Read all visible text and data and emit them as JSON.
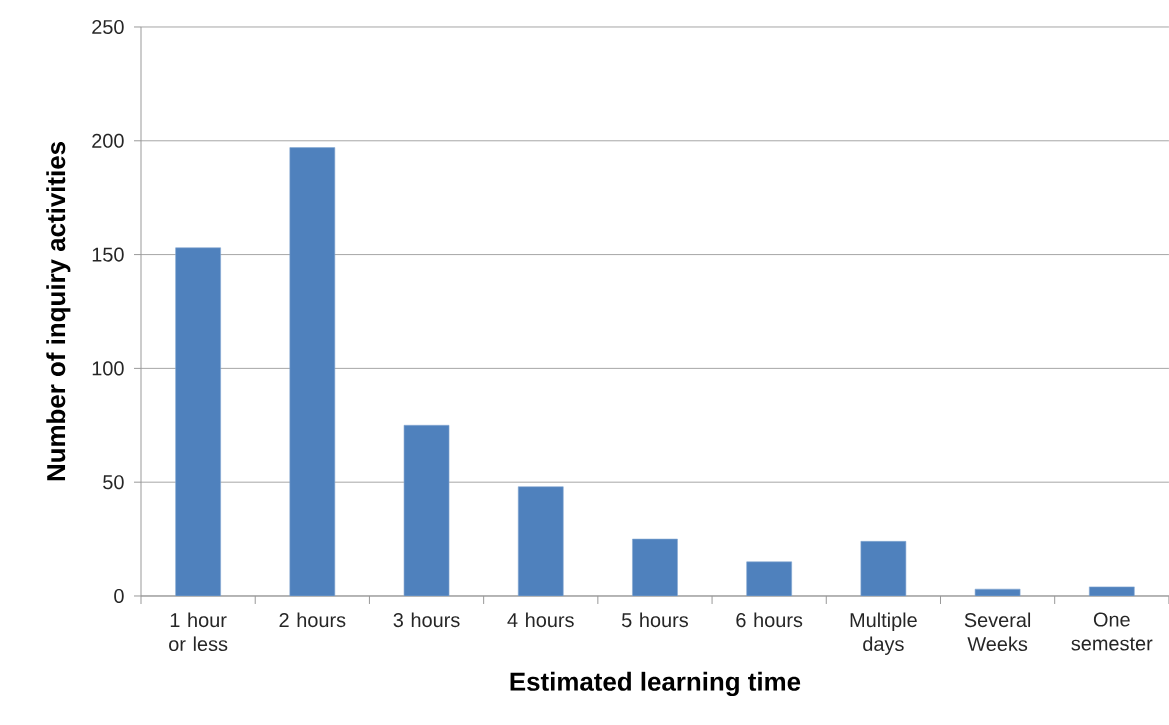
{
  "chart_data": {
    "type": "bar",
    "xlabel": "Estimated learning time",
    "ylabel": "Number of inquiry activities",
    "categories": [
      "1 hour or less",
      "2 hours",
      "3 hours",
      "4 hours",
      "5 hours",
      "6 hours",
      "Multiple days",
      "Several Weeks",
      "One semester"
    ],
    "values": [
      153,
      197,
      75,
      48,
      25,
      15,
      24,
      3,
      4
    ],
    "color": "#4f81bd",
    "ylim": [
      0,
      250
    ],
    "yticks": [
      0,
      50,
      100,
      150,
      200,
      250
    ],
    "grid": "y"
  }
}
